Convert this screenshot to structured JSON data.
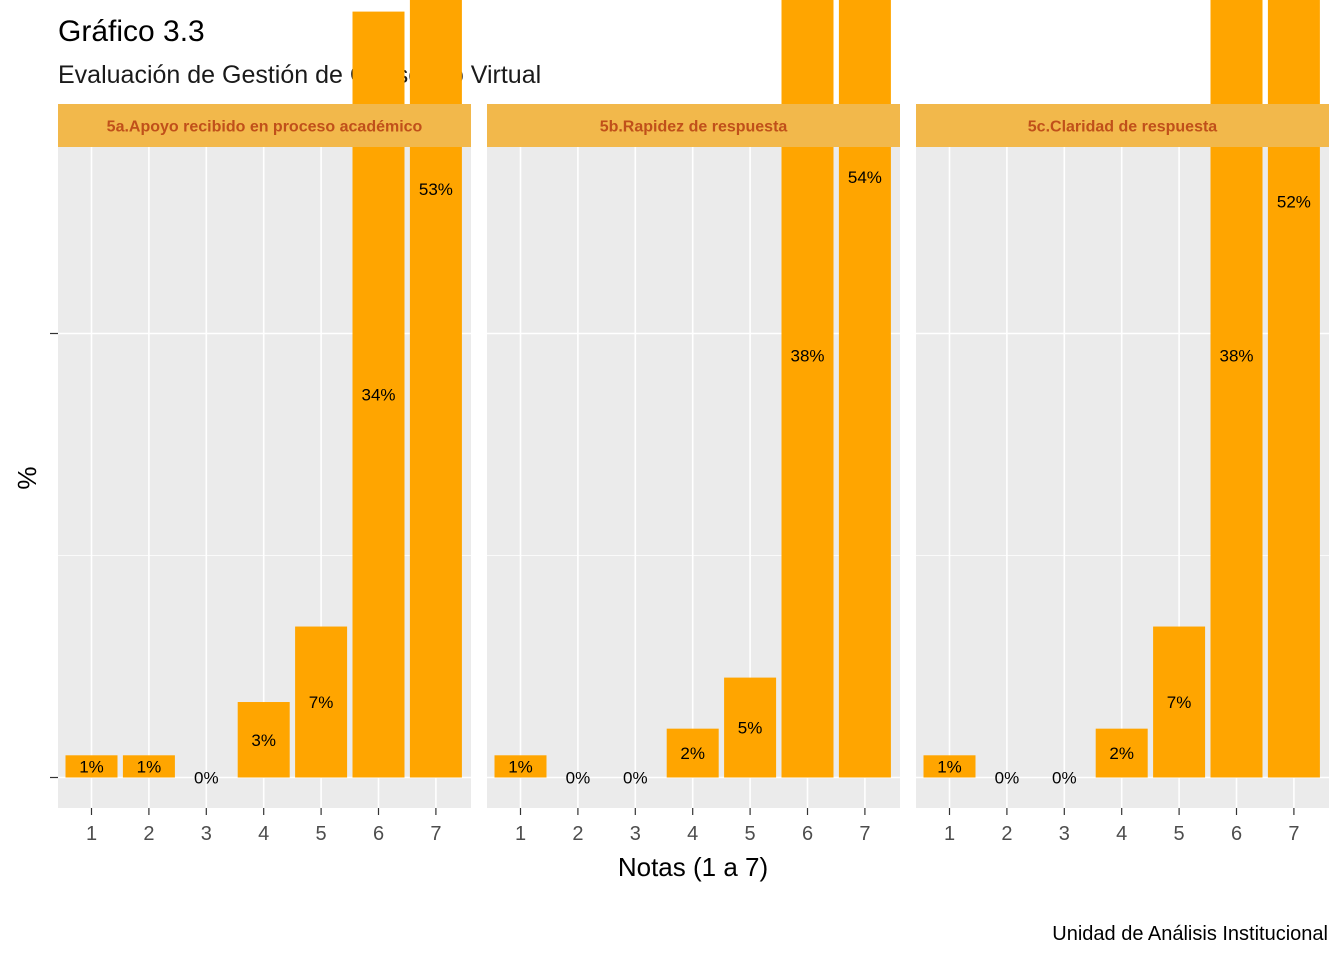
{
  "chart_data": {
    "type": "bar",
    "title": "Gráfico 3.3",
    "subtitle": "Evaluación de Gestión de Consejero Virtual",
    "xlabel": "Notas (1 a 7)",
    "ylabel": "%",
    "caption": "Unidad de Análisis Institucional",
    "categories": [
      "1",
      "2",
      "3",
      "4",
      "5",
      "6",
      "7"
    ],
    "ylim": [
      0,
      0.57
    ],
    "grid": true,
    "colors": {
      "bar": "#FFA500",
      "strip": "#F2B84B",
      "strip_text": "#C0501A",
      "panel": "#EBEBEB"
    },
    "panels": [
      {
        "name": "5a.Apoyo recibido en proceso académico",
        "values": [
          0.01,
          0.01,
          0.0,
          0.034,
          0.068,
          0.345,
          0.53
        ],
        "labels": [
          "1%",
          "1%",
          "0%",
          "3%",
          "7%",
          "34%",
          "53%"
        ]
      },
      {
        "name": "5b.Rapidez de respuesta",
        "values": [
          0.01,
          0.0,
          0.0,
          0.022,
          0.045,
          0.38,
          0.541
        ],
        "labels": [
          "1%",
          "0%",
          "0%",
          "2%",
          "5%",
          "38%",
          "54%"
        ]
      },
      {
        "name": "5c.Claridad de respuesta",
        "values": [
          0.01,
          0.0,
          0.0,
          0.022,
          0.068,
          0.38,
          0.519
        ],
        "labels": [
          "1%",
          "0%",
          "0%",
          "2%",
          "7%",
          "38%",
          "52%"
        ]
      }
    ]
  }
}
